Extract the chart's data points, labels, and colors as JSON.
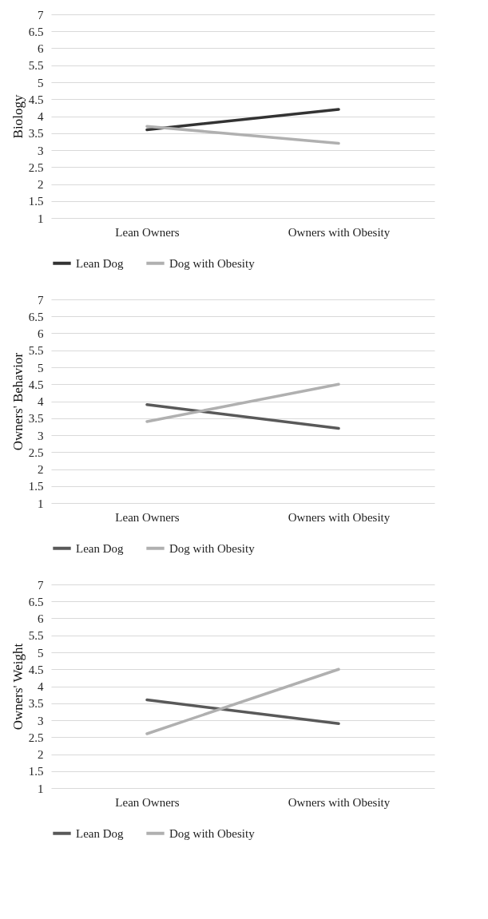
{
  "chart_data": [
    {
      "type": "line",
      "ylabel": "Biology",
      "categories": [
        "Lean Owners",
        "Owners with Obesity"
      ],
      "ylim": [
        1,
        7
      ],
      "yticks": [
        1,
        1.5,
        2,
        2.5,
        3,
        3.5,
        4,
        4.5,
        5,
        5.5,
        6,
        6.5,
        7
      ],
      "grid": "y",
      "legend": "bottom",
      "series": [
        {
          "name": "Lean Dog",
          "color": "#333333",
          "values": [
            3.6,
            4.2
          ]
        },
        {
          "name": "Dog with Obesity",
          "color": "#b0b0b0",
          "values": [
            3.7,
            3.2
          ]
        }
      ]
    },
    {
      "type": "line",
      "ylabel": "Owners' Behavior",
      "categories": [
        "Lean Owners",
        "Owners with Obesity"
      ],
      "ylim": [
        1,
        7
      ],
      "yticks": [
        1,
        1.5,
        2,
        2.5,
        3,
        3.5,
        4,
        4.5,
        5,
        5.5,
        6,
        6.5,
        7
      ],
      "grid": "y",
      "legend": "bottom",
      "series": [
        {
          "name": "Lean Dog",
          "color": "#595959",
          "values": [
            3.9,
            3.2
          ]
        },
        {
          "name": "Dog with Obesity",
          "color": "#b0b0b0",
          "values": [
            3.4,
            4.5
          ]
        }
      ]
    },
    {
      "type": "line",
      "ylabel": "Owners' Weight",
      "categories": [
        "Lean Owners",
        "Owners with Obesity"
      ],
      "ylim": [
        1,
        7
      ],
      "yticks": [
        1,
        1.5,
        2,
        2.5,
        3,
        3.5,
        4,
        4.5,
        5,
        5.5,
        6,
        6.5,
        7
      ],
      "grid": "y",
      "legend": "bottom",
      "series": [
        {
          "name": "Lean Dog",
          "color": "#595959",
          "values": [
            3.6,
            2.9
          ]
        },
        {
          "name": "Dog with Obesity",
          "color": "#b0b0b0",
          "values": [
            2.6,
            4.5
          ]
        }
      ]
    }
  ]
}
